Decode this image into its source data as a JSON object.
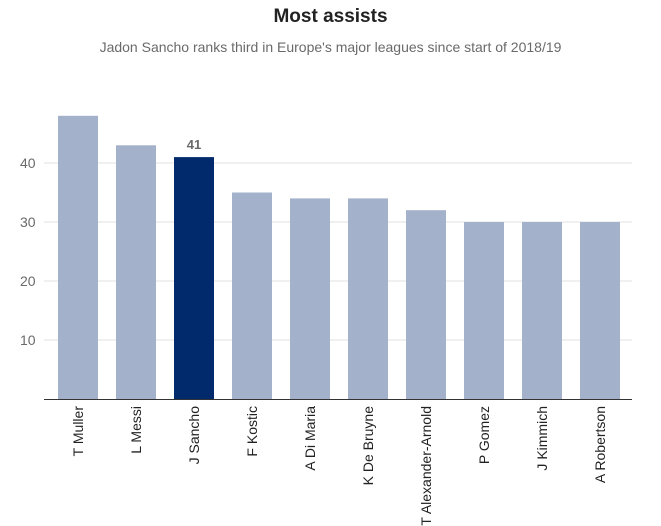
{
  "chart_data": {
    "type": "bar",
    "title": "Most assists",
    "subtitle": "Jadon Sancho ranks third in Europe's major leagues since start of 2018/19",
    "categories": [
      "T Muller",
      "L Messi",
      "J Sancho",
      "F Kostic",
      "A Di Maria",
      "K De Bruyne",
      "T Alexander-Arnold",
      "P Gomez",
      "J Kimmich",
      "A Robertson"
    ],
    "values": [
      48,
      43,
      41,
      35,
      34,
      34,
      32,
      30,
      30,
      30
    ],
    "highlight": "J Sancho",
    "data_labels": [
      {
        "category": "J Sancho",
        "text": "41"
      }
    ],
    "yticks": [
      10,
      20,
      30,
      40
    ],
    "ylim": [
      0,
      48
    ],
    "xlabel": "",
    "ylabel": "",
    "grid": true,
    "legend": "none",
    "colors": {
      "bar": "#a3b1cb",
      "highlight": "#002a6b",
      "grid": "#e2e2e2",
      "axis": "#333333"
    }
  }
}
